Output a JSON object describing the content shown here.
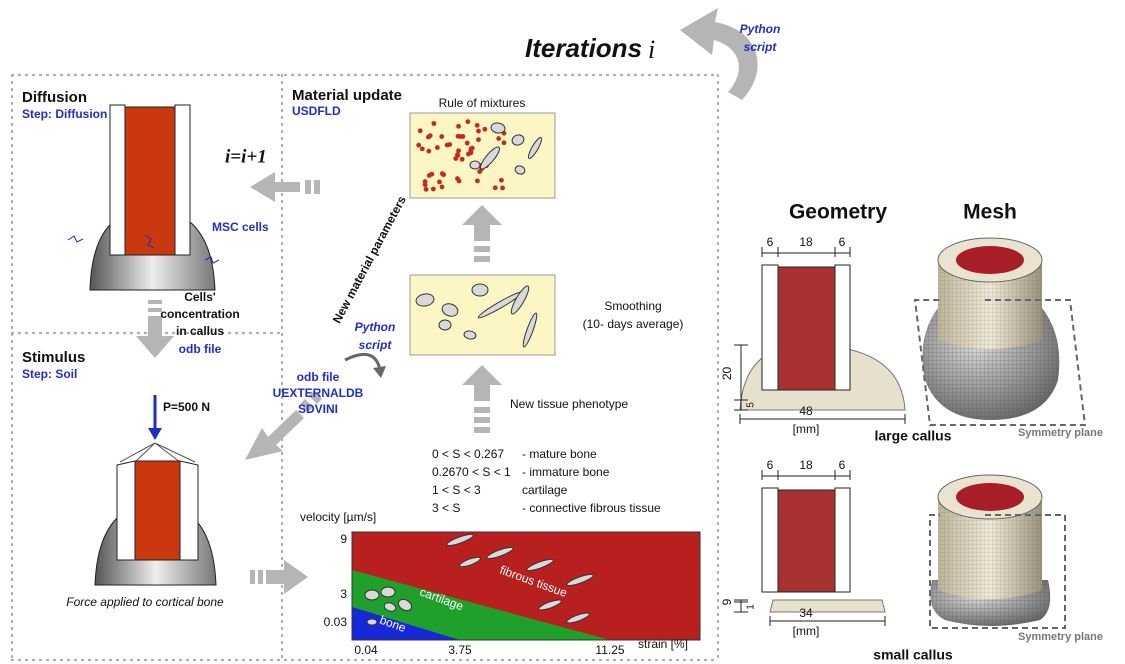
{
  "header": {
    "title": "Iterations",
    "variable": "i",
    "script": [
      "Python",
      "script"
    ]
  },
  "diffusion": {
    "title": "Diffusion",
    "step": "Step: Diffusion",
    "cells": "MSC cells",
    "iteration": "i=i+1"
  },
  "material_update": {
    "title": "Material update",
    "subroutine": "USDFLD",
    "rule": "Rule of mixtures",
    "smoothing": [
      "Smoothing",
      "(10- days average)"
    ],
    "phenotype": "New tissue phenotype",
    "parameters": "New material parameters",
    "script": [
      "Python",
      "script"
    ]
  },
  "transfer": {
    "lines": [
      "Cells'",
      "concentration",
      "in callus"
    ],
    "file": "odb file"
  },
  "stimulus": {
    "title": "Stimulus",
    "step": "Step: Soil",
    "load": "P=500 N",
    "caption": "Force applied to cortical bone",
    "files": [
      "odb file",
      "UEXTERNALDB",
      "SDVINI"
    ]
  },
  "thresholds": [
    {
      "range": "0 < S < 0.267",
      "tissue": "- mature bone"
    },
    {
      "range": "0.2670 < S < 1",
      "tissue": "- immature bone"
    },
    {
      "range": "1 < S < 3",
      "tissue": "cartilage"
    },
    {
      "range": "3 < S",
      "tissue": "- connective fibrous tissue"
    }
  ],
  "diagram": {
    "y_label": "velocity [µm/s]",
    "y_ticks": [
      "9",
      "3",
      "0.03"
    ],
    "x_ticks": [
      "0.04",
      "3.75",
      "11.25"
    ],
    "x_label": "strain [%]",
    "regions": [
      "fibrous tissue",
      "cartilage",
      "bone"
    ]
  },
  "geometry": {
    "title": "Geometry",
    "mesh_title": "Mesh",
    "large": {
      "dims": [
        "6",
        "18",
        "6"
      ],
      "height": "20",
      "step": "5",
      "width": "48",
      "unit": "[mm]",
      "caption": "large callus",
      "plane": "Symmetry plane"
    },
    "small": {
      "dims": [
        "6",
        "18",
        "6"
      ],
      "height": "9",
      "step": "1",
      "width": "34",
      "unit": "[mm]",
      "caption": "small callus",
      "plane": "Symmetry plane"
    }
  }
}
